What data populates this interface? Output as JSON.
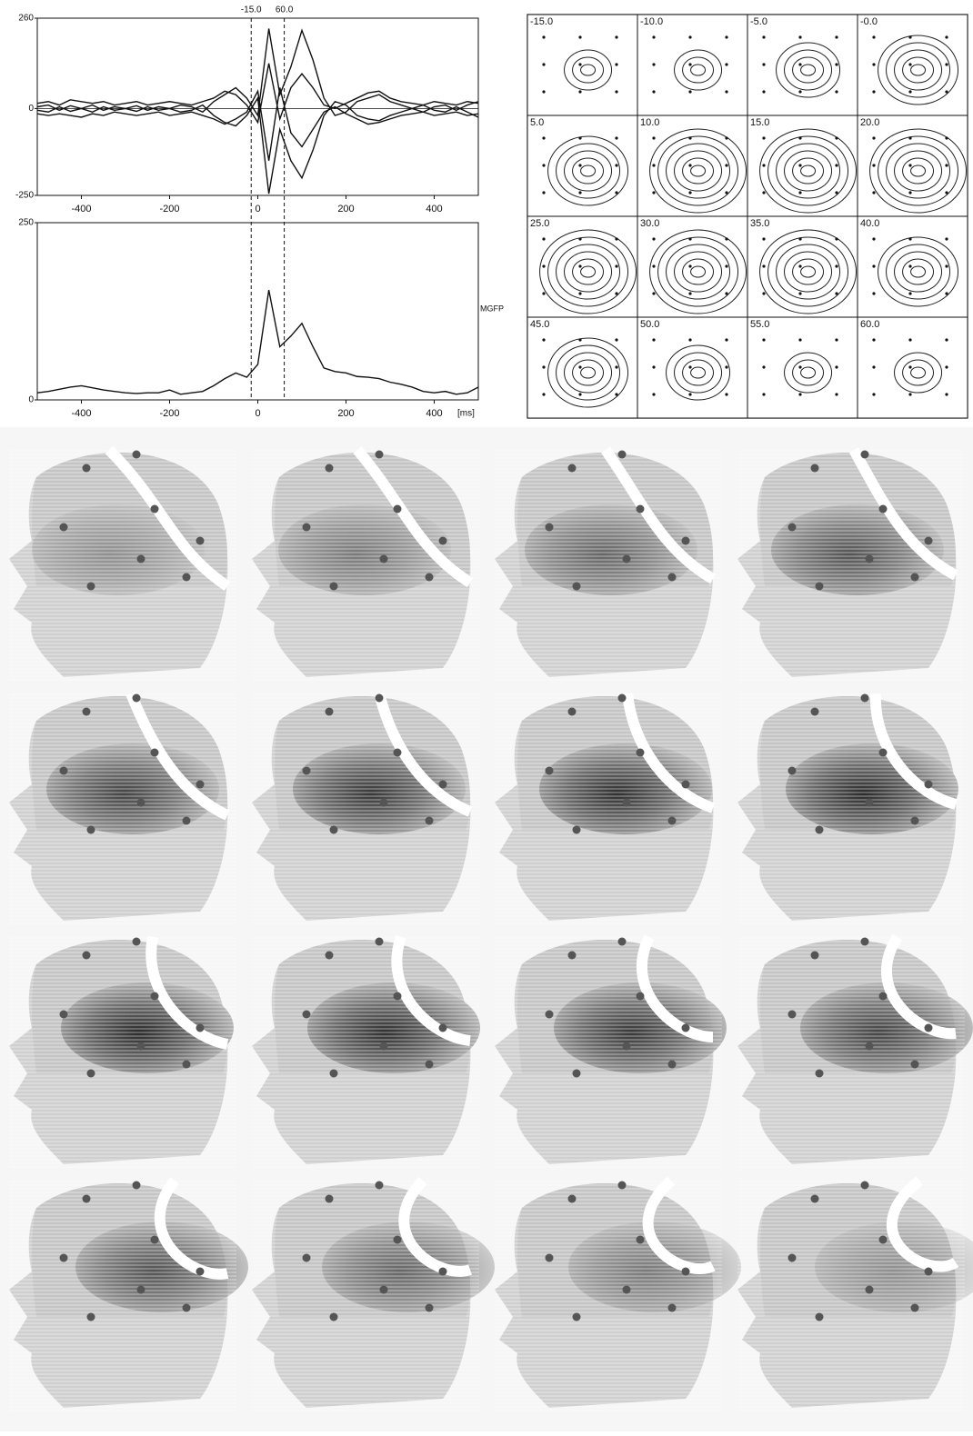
{
  "chart_data": [
    {
      "type": "line",
      "x": [
        -500,
        -475,
        -450,
        -425,
        -400,
        -375,
        -350,
        -325,
        -300,
        -275,
        -250,
        -225,
        -200,
        -175,
        -150,
        -125,
        -100,
        -75,
        -50,
        -25,
        0,
        25,
        50,
        75,
        100,
        125,
        150,
        175,
        200,
        225,
        250,
        275,
        300,
        325,
        350,
        375,
        400,
        425,
        450,
        475,
        500
      ],
      "series": [
        {
          "color": "#111111",
          "values": [
            5,
            10,
            -5,
            8,
            0,
            10,
            -5,
            5,
            0,
            8,
            -5,
            5,
            0,
            10,
            5,
            -10,
            20,
            40,
            60,
            30,
            -20,
            230,
            40,
            120,
            225,
            140,
            30,
            -20,
            -10,
            20,
            30,
            40,
            20,
            10,
            0,
            -10,
            5,
            10,
            -5,
            10,
            20
          ]
        },
        {
          "color": "#111111",
          "values": [
            -5,
            -10,
            5,
            -8,
            0,
            -10,
            5,
            -5,
            0,
            -8,
            5,
            -5,
            0,
            -10,
            -5,
            10,
            -20,
            -40,
            -50,
            -20,
            30,
            -245,
            -60,
            -150,
            -200,
            -120,
            -20,
            20,
            10,
            -20,
            -30,
            -35,
            -20,
            -10,
            0,
            10,
            -5,
            -10,
            5,
            -10,
            -25
          ]
        },
        {
          "color": "#111111",
          "values": [
            15,
            20,
            10,
            25,
            20,
            15,
            20,
            10,
            15,
            20,
            10,
            15,
            20,
            15,
            10,
            20,
            30,
            50,
            40,
            10,
            -40,
            130,
            -30,
            60,
            100,
            60,
            10,
            0,
            15,
            30,
            45,
            50,
            30,
            20,
            15,
            10,
            20,
            15,
            10,
            20,
            15
          ]
        },
        {
          "color": "#111111",
          "values": [
            -15,
            -20,
            -15,
            -20,
            -25,
            -15,
            -20,
            -10,
            -15,
            -20,
            -15,
            -10,
            -20,
            -15,
            -10,
            -20,
            -30,
            -45,
            -30,
            -10,
            50,
            -150,
            60,
            -70,
            -110,
            -60,
            -10,
            5,
            -15,
            -30,
            -45,
            -40,
            -30,
            -20,
            -15,
            -10,
            -20,
            -15,
            -10,
            -20,
            -15
          ]
        }
      ],
      "xlim": [
        -500,
        500
      ],
      "xticks": [
        -400,
        -200,
        0,
        200,
        400
      ],
      "ylim": [
        -250,
        260
      ],
      "yticks": [
        -250,
        0,
        260
      ],
      "markers": [
        {
          "value": -15,
          "label": "-15.0"
        },
        {
          "value": 60,
          "label": "60.0"
        }
      ]
    },
    {
      "type": "line",
      "x": [
        -500,
        -475,
        -450,
        -425,
        -400,
        -375,
        -350,
        -325,
        -300,
        -275,
        -250,
        -225,
        -200,
        -175,
        -150,
        -125,
        -100,
        -75,
        -50,
        -25,
        0,
        25,
        50,
        75,
        100,
        125,
        150,
        175,
        200,
        225,
        250,
        275,
        300,
        325,
        350,
        375,
        400,
        425,
        450,
        475,
        500
      ],
      "series": [
        {
          "color": "#111111",
          "values": [
            10,
            12,
            15,
            18,
            20,
            17,
            14,
            12,
            10,
            9,
            10,
            10,
            14,
            8,
            10,
            12,
            20,
            30,
            38,
            32,
            50,
            155,
            75,
            90,
            108,
            75,
            45,
            40,
            38,
            33,
            32,
            30,
            25,
            22,
            18,
            12,
            10,
            12,
            8,
            10,
            18
          ]
        }
      ],
      "xlim": [
        -500,
        500
      ],
      "xticks": [
        -400,
        -200,
        0,
        200,
        400
      ],
      "ylim": [
        0,
        250
      ],
      "yticks": [
        0,
        250
      ],
      "y_label": "MGFP",
      "x_label": "[ms]"
    }
  ],
  "contour_maps": {
    "labels": [
      "-15.0",
      "-10.0",
      "-5.0",
      "-0.0",
      "5.0",
      "10.0",
      "15.0",
      "20.0",
      "25.0",
      "30.0",
      "35.0",
      "40.0",
      "45.0",
      "50.0",
      "55.0",
      "60.0"
    ]
  }
}
